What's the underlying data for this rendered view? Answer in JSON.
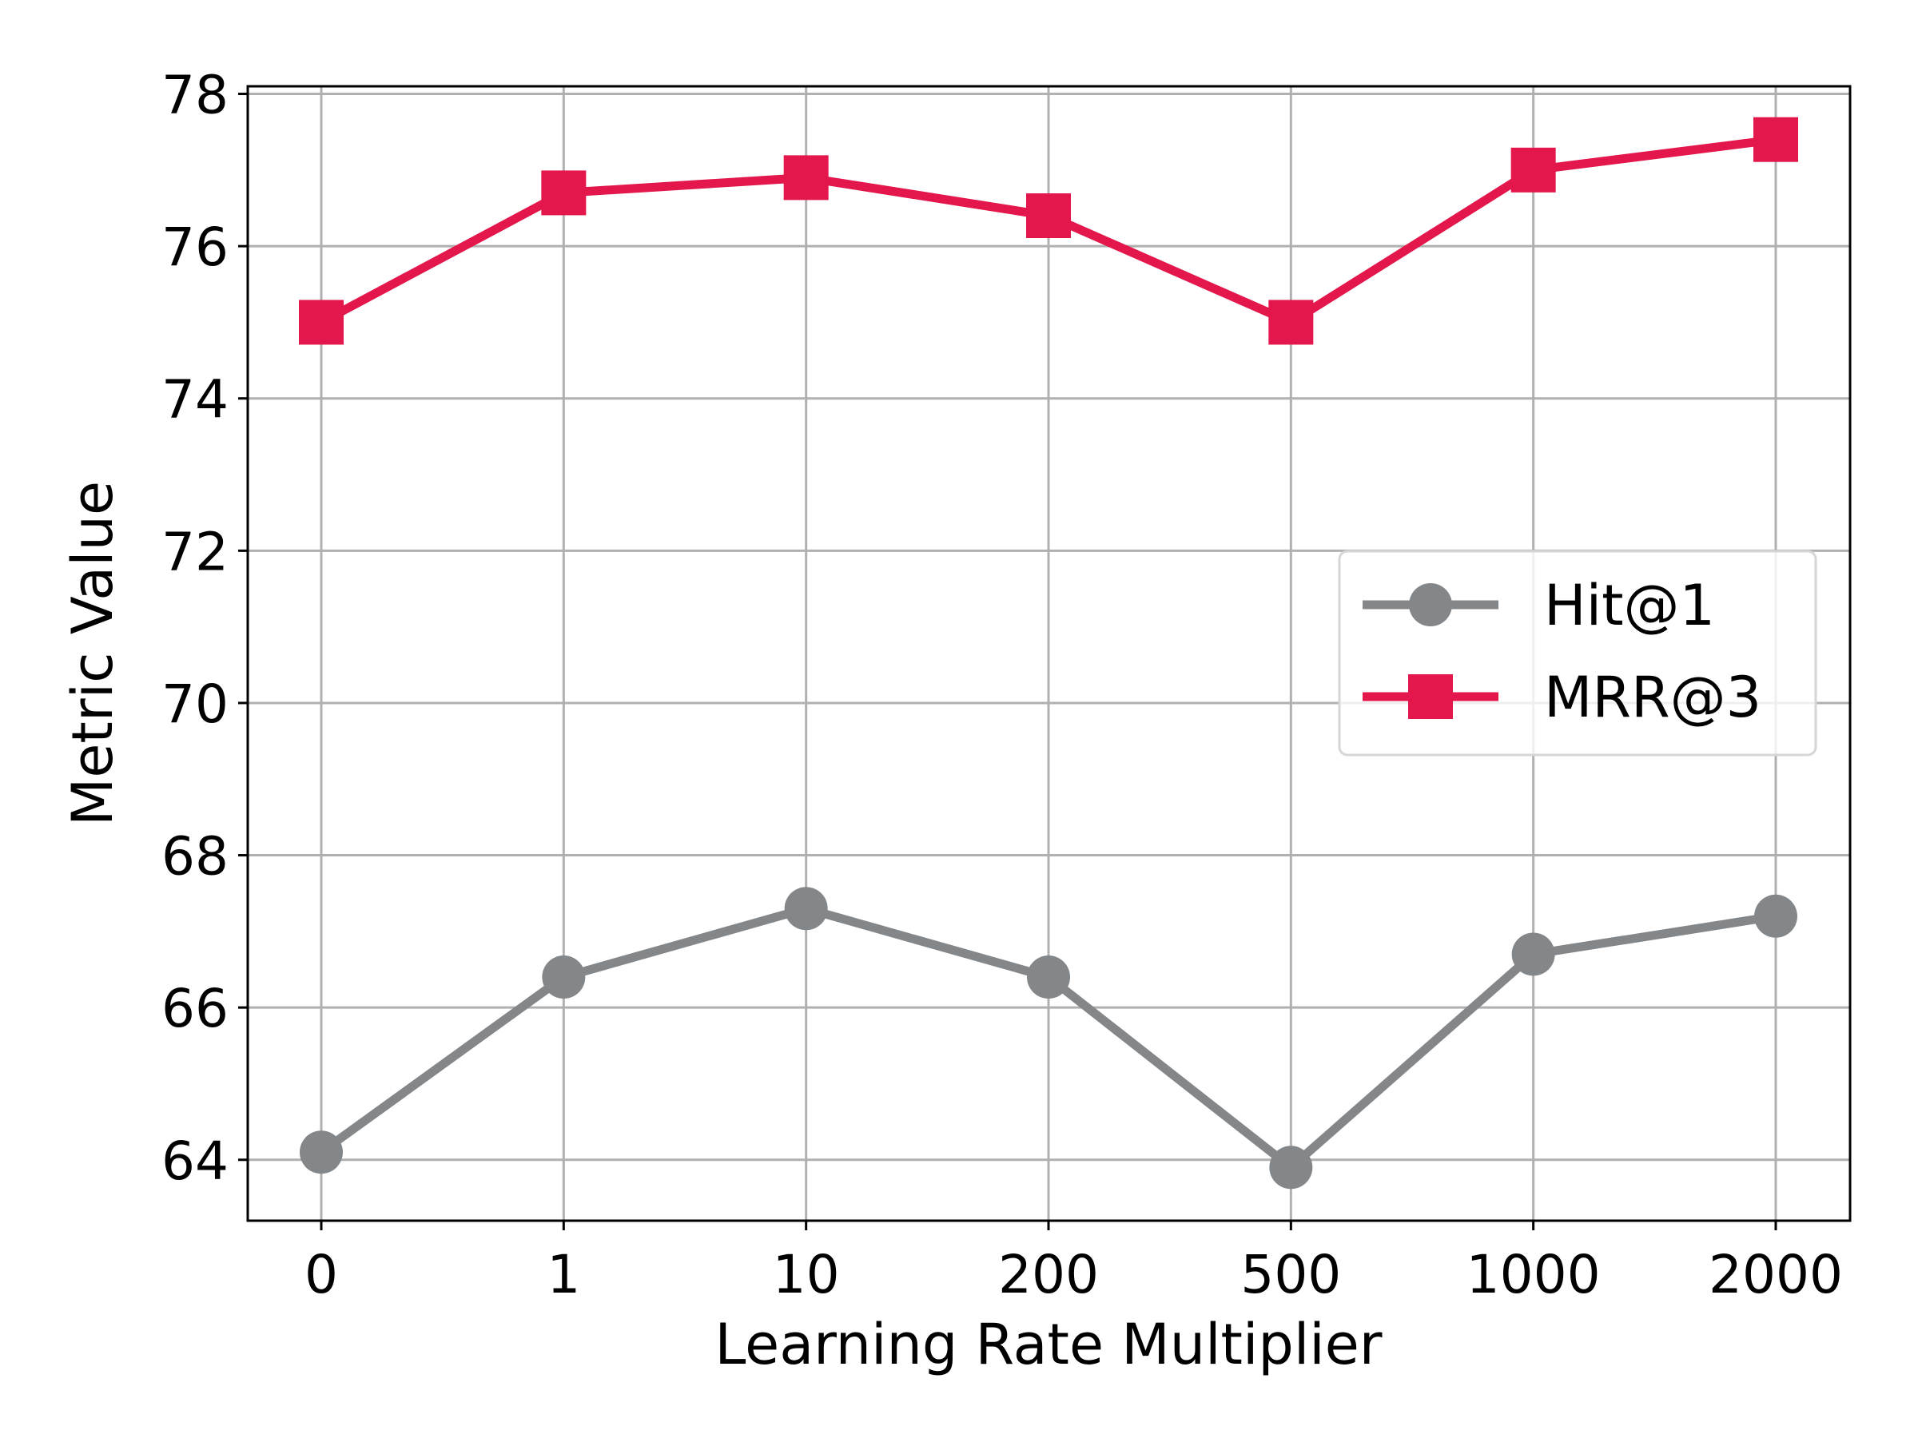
{
  "chart_data": {
    "type": "line",
    "title": "",
    "xlabel": "Learning Rate Multiplier",
    "ylabel": "Metric Value",
    "categories": [
      "0",
      "1",
      "10",
      "200",
      "500",
      "1000",
      "2000"
    ],
    "ylim": [
      63.2,
      78.1
    ],
    "yticks": [
      64,
      66,
      68,
      70,
      72,
      74,
      76,
      78
    ],
    "grid": true,
    "legend_position": "center-right",
    "series": [
      {
        "name": "Hit@1",
        "marker": "circle",
        "color": "#83878a",
        "values": [
          64.1,
          66.4,
          67.3,
          66.4,
          63.9,
          66.7,
          67.2
        ]
      },
      {
        "name": "MRR@3",
        "marker": "square",
        "color": "#e3174b",
        "values": [
          75.0,
          76.7,
          76.9,
          76.4,
          75.0,
          77.0,
          77.4
        ]
      }
    ]
  }
}
